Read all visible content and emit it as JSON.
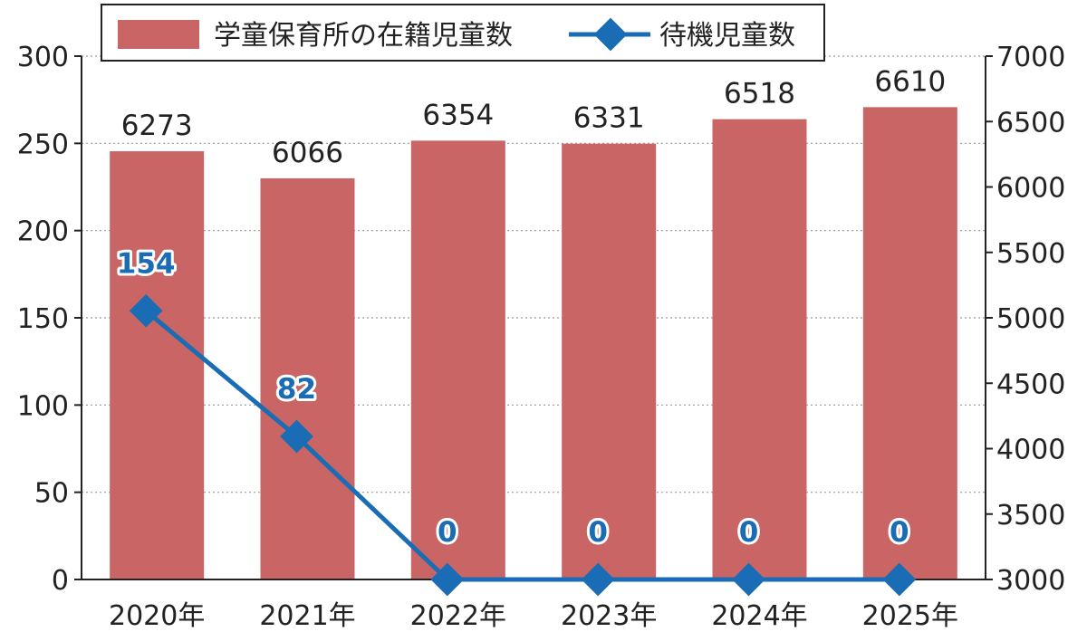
{
  "chart_data": {
    "type": "bar+line",
    "categories": [
      "2020年",
      "2021年",
      "2022年",
      "2023年",
      "2024年",
      "2025年"
    ],
    "series": [
      {
        "name": "学童保育所の在籍児童数",
        "kind": "bar",
        "axis": "right",
        "values": [
          6273,
          6066,
          6354,
          6331,
          6518,
          6610
        ],
        "color": "#c96565"
      },
      {
        "name": "待機児童数",
        "kind": "line",
        "axis": "left",
        "values": [
          154,
          82,
          0,
          0,
          0,
          0
        ],
        "color": "#1a6db5"
      }
    ],
    "ylim_left": [
      0,
      300
    ],
    "yticks_left": [
      "0",
      "50",
      "100",
      "150",
      "200",
      "250",
      "300"
    ],
    "ylim_right": [
      3000,
      7000
    ],
    "yticks_right": [
      "3000",
      "3500",
      "4000",
      "4500",
      "5000",
      "5500",
      "6000",
      "6500",
      "7000"
    ],
    "grid": "horizontal dotted",
    "legend_position": "top"
  }
}
